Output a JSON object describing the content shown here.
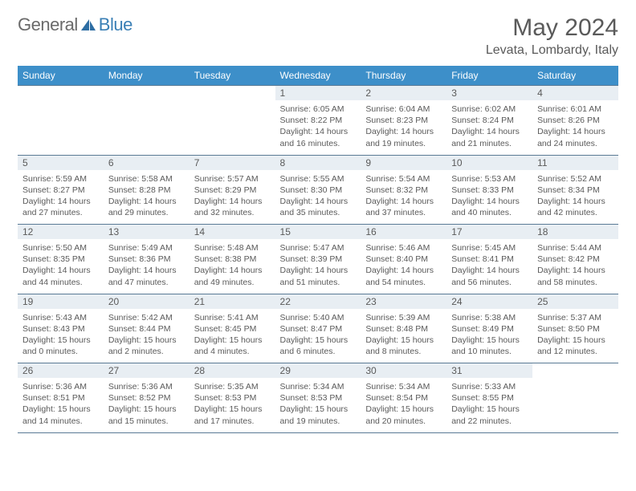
{
  "logo": {
    "general": "General",
    "blue": "Blue"
  },
  "title": "May 2024",
  "location": "Levata, Lombardy, Italy",
  "colors": {
    "header_bg": "#3d8fc9",
    "header_text": "#ffffff",
    "daynum_bg": "#e8eef3",
    "border": "#5a7a95",
    "text": "#5a5a5a",
    "logo_gray": "#6a6a6a",
    "logo_blue": "#3a7fb5",
    "page_bg": "#ffffff"
  },
  "typography": {
    "title_fontsize": 30,
    "location_fontsize": 16,
    "dayheader_fontsize": 12,
    "daynum_fontsize": 12,
    "cell_fontsize": 10.5
  },
  "day_headers": [
    "Sunday",
    "Monday",
    "Tuesday",
    "Wednesday",
    "Thursday",
    "Friday",
    "Saturday"
  ],
  "weeks": [
    {
      "nums": [
        "",
        "",
        "",
        "1",
        "2",
        "3",
        "4"
      ],
      "cells": [
        {
          "empty": true
        },
        {
          "empty": true
        },
        {
          "empty": true
        },
        {
          "sunrise": "Sunrise: 6:05 AM",
          "sunset": "Sunset: 8:22 PM",
          "daylight": "Daylight: 14 hours and 16 minutes."
        },
        {
          "sunrise": "Sunrise: 6:04 AM",
          "sunset": "Sunset: 8:23 PM",
          "daylight": "Daylight: 14 hours and 19 minutes."
        },
        {
          "sunrise": "Sunrise: 6:02 AM",
          "sunset": "Sunset: 8:24 PM",
          "daylight": "Daylight: 14 hours and 21 minutes."
        },
        {
          "sunrise": "Sunrise: 6:01 AM",
          "sunset": "Sunset: 8:26 PM",
          "daylight": "Daylight: 14 hours and 24 minutes."
        }
      ]
    },
    {
      "nums": [
        "5",
        "6",
        "7",
        "8",
        "9",
        "10",
        "11"
      ],
      "cells": [
        {
          "sunrise": "Sunrise: 5:59 AM",
          "sunset": "Sunset: 8:27 PM",
          "daylight": "Daylight: 14 hours and 27 minutes."
        },
        {
          "sunrise": "Sunrise: 5:58 AM",
          "sunset": "Sunset: 8:28 PM",
          "daylight": "Daylight: 14 hours and 29 minutes."
        },
        {
          "sunrise": "Sunrise: 5:57 AM",
          "sunset": "Sunset: 8:29 PM",
          "daylight": "Daylight: 14 hours and 32 minutes."
        },
        {
          "sunrise": "Sunrise: 5:55 AM",
          "sunset": "Sunset: 8:30 PM",
          "daylight": "Daylight: 14 hours and 35 minutes."
        },
        {
          "sunrise": "Sunrise: 5:54 AM",
          "sunset": "Sunset: 8:32 PM",
          "daylight": "Daylight: 14 hours and 37 minutes."
        },
        {
          "sunrise": "Sunrise: 5:53 AM",
          "sunset": "Sunset: 8:33 PM",
          "daylight": "Daylight: 14 hours and 40 minutes."
        },
        {
          "sunrise": "Sunrise: 5:52 AM",
          "sunset": "Sunset: 8:34 PM",
          "daylight": "Daylight: 14 hours and 42 minutes."
        }
      ]
    },
    {
      "nums": [
        "12",
        "13",
        "14",
        "15",
        "16",
        "17",
        "18"
      ],
      "cells": [
        {
          "sunrise": "Sunrise: 5:50 AM",
          "sunset": "Sunset: 8:35 PM",
          "daylight": "Daylight: 14 hours and 44 minutes."
        },
        {
          "sunrise": "Sunrise: 5:49 AM",
          "sunset": "Sunset: 8:36 PM",
          "daylight": "Daylight: 14 hours and 47 minutes."
        },
        {
          "sunrise": "Sunrise: 5:48 AM",
          "sunset": "Sunset: 8:38 PM",
          "daylight": "Daylight: 14 hours and 49 minutes."
        },
        {
          "sunrise": "Sunrise: 5:47 AM",
          "sunset": "Sunset: 8:39 PM",
          "daylight": "Daylight: 14 hours and 51 minutes."
        },
        {
          "sunrise": "Sunrise: 5:46 AM",
          "sunset": "Sunset: 8:40 PM",
          "daylight": "Daylight: 14 hours and 54 minutes."
        },
        {
          "sunrise": "Sunrise: 5:45 AM",
          "sunset": "Sunset: 8:41 PM",
          "daylight": "Daylight: 14 hours and 56 minutes."
        },
        {
          "sunrise": "Sunrise: 5:44 AM",
          "sunset": "Sunset: 8:42 PM",
          "daylight": "Daylight: 14 hours and 58 minutes."
        }
      ]
    },
    {
      "nums": [
        "19",
        "20",
        "21",
        "22",
        "23",
        "24",
        "25"
      ],
      "cells": [
        {
          "sunrise": "Sunrise: 5:43 AM",
          "sunset": "Sunset: 8:43 PM",
          "daylight": "Daylight: 15 hours and 0 minutes."
        },
        {
          "sunrise": "Sunrise: 5:42 AM",
          "sunset": "Sunset: 8:44 PM",
          "daylight": "Daylight: 15 hours and 2 minutes."
        },
        {
          "sunrise": "Sunrise: 5:41 AM",
          "sunset": "Sunset: 8:45 PM",
          "daylight": "Daylight: 15 hours and 4 minutes."
        },
        {
          "sunrise": "Sunrise: 5:40 AM",
          "sunset": "Sunset: 8:47 PM",
          "daylight": "Daylight: 15 hours and 6 minutes."
        },
        {
          "sunrise": "Sunrise: 5:39 AM",
          "sunset": "Sunset: 8:48 PM",
          "daylight": "Daylight: 15 hours and 8 minutes."
        },
        {
          "sunrise": "Sunrise: 5:38 AM",
          "sunset": "Sunset: 8:49 PM",
          "daylight": "Daylight: 15 hours and 10 minutes."
        },
        {
          "sunrise": "Sunrise: 5:37 AM",
          "sunset": "Sunset: 8:50 PM",
          "daylight": "Daylight: 15 hours and 12 minutes."
        }
      ]
    },
    {
      "nums": [
        "26",
        "27",
        "28",
        "29",
        "30",
        "31",
        ""
      ],
      "cells": [
        {
          "sunrise": "Sunrise: 5:36 AM",
          "sunset": "Sunset: 8:51 PM",
          "daylight": "Daylight: 15 hours and 14 minutes."
        },
        {
          "sunrise": "Sunrise: 5:36 AM",
          "sunset": "Sunset: 8:52 PM",
          "daylight": "Daylight: 15 hours and 15 minutes."
        },
        {
          "sunrise": "Sunrise: 5:35 AM",
          "sunset": "Sunset: 8:53 PM",
          "daylight": "Daylight: 15 hours and 17 minutes."
        },
        {
          "sunrise": "Sunrise: 5:34 AM",
          "sunset": "Sunset: 8:53 PM",
          "daylight": "Daylight: 15 hours and 19 minutes."
        },
        {
          "sunrise": "Sunrise: 5:34 AM",
          "sunset": "Sunset: 8:54 PM",
          "daylight": "Daylight: 15 hours and 20 minutes."
        },
        {
          "sunrise": "Sunrise: 5:33 AM",
          "sunset": "Sunset: 8:55 PM",
          "daylight": "Daylight: 15 hours and 22 minutes."
        },
        {
          "empty": true
        }
      ]
    }
  ]
}
